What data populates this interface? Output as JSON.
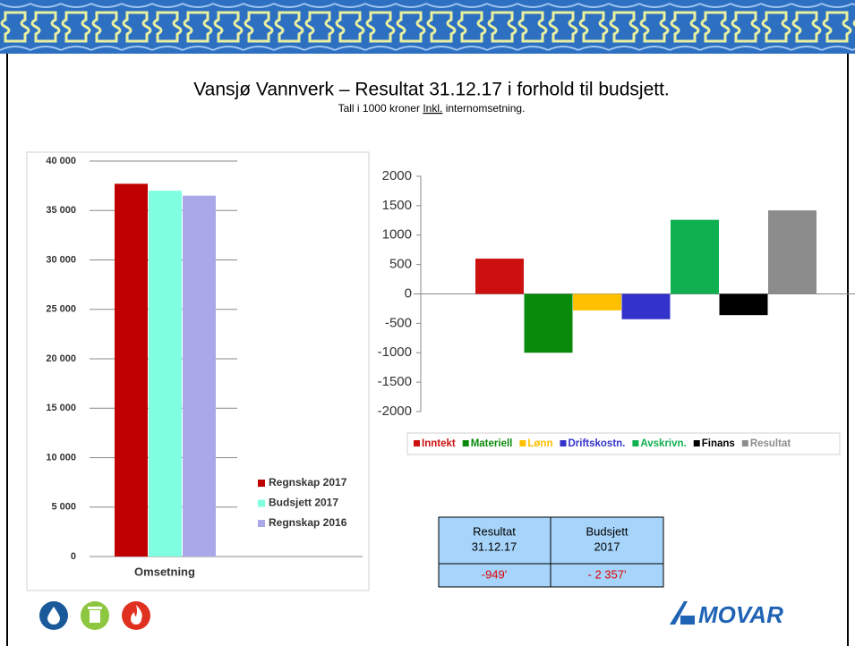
{
  "title": "Vansjø Vannverk – Resultat 31.12.17 i forhold til budsjett.",
  "subtitle": [
    "Tall i 1000 kroner",
    "Inkl.",
    "internomsetning."
  ],
  "chart_data": [
    {
      "type": "bar",
      "categories": [
        "Omsetning"
      ],
      "series": [
        {
          "name": "Regnskap 2017",
          "color": "#c00000",
          "values": [
            37700
          ]
        },
        {
          "name": "Budsjett 2017",
          "color": "#80ffe0",
          "values": [
            37000
          ]
        },
        {
          "name": "Regnskap 2016",
          "color": "#a9a9ea",
          "values": [
            36500
          ]
        }
      ],
      "ylim": [
        0,
        40000
      ],
      "yticks": [
        0,
        {
          "value": 5000,
          "label": "5 000"
        },
        {
          "value": 10000,
          "label": "10 000"
        },
        {
          "value": 15000,
          "label": "15 000"
        },
        {
          "value": 20000,
          "label": "20 000"
        },
        {
          "value": 25000,
          "label": "25 000"
        },
        {
          "value": 30000,
          "label": "30 000"
        },
        {
          "value": 35000,
          "label": "35 000"
        },
        {
          "value": 40000,
          "label": "40 000"
        }
      ],
      "grid": true,
      "legend": "right"
    },
    {
      "type": "bar",
      "categories": [
        "Inntekt",
        "Materiell",
        "Lønn",
        "Driftskostn.",
        "Avskrivn.",
        "Finans",
        "Resultat"
      ],
      "values": [
        600,
        -1000,
        -280,
        -430,
        1260,
        -360,
        1420
      ],
      "colors": [
        "#cc1010",
        "#0a8a0a",
        "#ffc000",
        "#3333cc",
        "#10b050",
        "#000000",
        "#8c8c8c"
      ],
      "ylim": [
        -2000,
        2000
      ],
      "yticks": [
        -2000,
        -1500,
        -1000,
        -500,
        0,
        500,
        1000,
        1500,
        2000
      ],
      "grid": false,
      "legend": "bottom"
    }
  ],
  "table": {
    "header": [
      [
        "Resultat",
        "31.12.17"
      ],
      [
        "Budsjett",
        "2017"
      ]
    ],
    "rows": [
      [
        "-949'",
        "- 2 357'"
      ]
    ]
  },
  "logo": "MOVAR"
}
